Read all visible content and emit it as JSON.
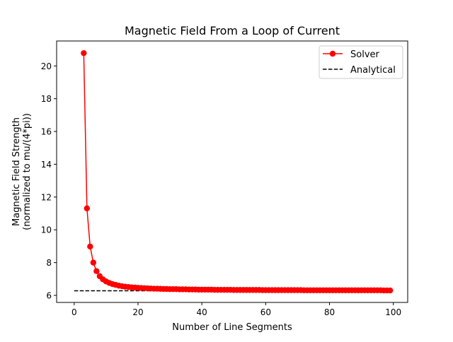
{
  "chart_data": {
    "type": "line",
    "title": "Magnetic Field From a Loop of Current",
    "xlabel": "Number of Line Segments",
    "ylabel_line1": "Magnetic Field Strength",
    "ylabel_line2": "(normalized to mu/(4*pi))",
    "xlim": [
      -5.5,
      104.5
    ],
    "ylim": [
      5.57,
      21.52
    ],
    "x_ticks": [
      0,
      20,
      40,
      60,
      80,
      100
    ],
    "y_ticks": [
      6,
      8,
      10,
      12,
      14,
      16,
      18,
      20
    ],
    "grid": false,
    "legend_position": "top-right",
    "series": [
      {
        "name": "Solver",
        "color": "#ff0000",
        "marker": "circle",
        "x": [
          3,
          4,
          5,
          6,
          7,
          8,
          9,
          10,
          11,
          12,
          13,
          14,
          15,
          16,
          17,
          18,
          19,
          20,
          21,
          22,
          23,
          24,
          25,
          26,
          27,
          28,
          29,
          30,
          31,
          32,
          33,
          34,
          35,
          36,
          37,
          38,
          39,
          40,
          41,
          42,
          43,
          44,
          45,
          46,
          47,
          48,
          49,
          50,
          51,
          52,
          53,
          54,
          55,
          56,
          57,
          58,
          59,
          60,
          61,
          62,
          63,
          64,
          65,
          66,
          67,
          68,
          69,
          70,
          71,
          72,
          73,
          74,
          75,
          76,
          77,
          78,
          79,
          80,
          81,
          82,
          83,
          84,
          85,
          86,
          87,
          88,
          89,
          90,
          91,
          92,
          93,
          94,
          95,
          96,
          97,
          98,
          99
        ],
        "y": [
          20.78,
          11.31,
          8.98,
          8.0,
          7.48,
          7.17,
          6.98,
          6.85,
          6.76,
          6.69,
          6.64,
          6.59,
          6.56,
          6.53,
          6.51,
          6.49,
          6.48,
          6.46,
          6.45,
          6.44,
          6.43,
          6.42,
          6.41,
          6.41,
          6.4,
          6.39,
          6.39,
          6.38,
          6.38,
          6.38,
          6.37,
          6.37,
          6.37,
          6.36,
          6.36,
          6.36,
          6.35,
          6.35,
          6.35,
          6.35,
          6.35,
          6.34,
          6.34,
          6.34,
          6.34,
          6.34,
          6.34,
          6.33,
          6.33,
          6.33,
          6.33,
          6.33,
          6.33,
          6.33,
          6.33,
          6.33,
          6.32,
          6.32,
          6.32,
          6.32,
          6.32,
          6.32,
          6.32,
          6.32,
          6.32,
          6.32,
          6.32,
          6.32,
          6.32,
          6.31,
          6.31,
          6.31,
          6.31,
          6.31,
          6.31,
          6.31,
          6.31,
          6.31,
          6.31,
          6.31,
          6.31,
          6.31,
          6.31,
          6.31,
          6.31,
          6.31,
          6.31,
          6.31,
          6.31,
          6.31,
          6.31,
          6.31,
          6.31,
          6.31,
          6.3,
          6.3,
          6.3
        ]
      },
      {
        "name": "Analytical",
        "color": "#000000",
        "style": "dashed",
        "x": [
          0,
          99
        ],
        "y": [
          6.283,
          6.283
        ]
      }
    ]
  }
}
